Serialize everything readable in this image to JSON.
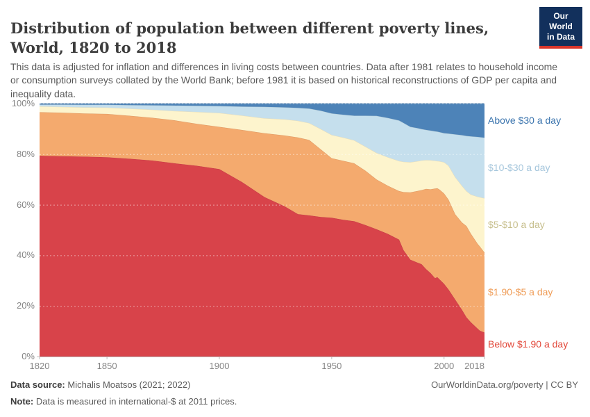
{
  "header": {
    "title": "Distribution of population between different poverty lines, World, 1820 to 2018",
    "logo": {
      "line1": "Our World",
      "line2": "in Data"
    }
  },
  "subtitle": "This data is adjusted for inflation and differences in living costs between countries. Data after 1981 relates to household income or consumption surveys collated by the World Bank; before 1981 it is based on historical reconstructions of GDP per capita and inequality data.",
  "chart_data": {
    "type": "area",
    "stacked": true,
    "unit": "%",
    "title": "Distribution of population between different poverty lines, World, 1820 to 2018",
    "xlim": [
      1820,
      2018
    ],
    "ylim": [
      0,
      100
    ],
    "grid": "dashed",
    "legend_position": "right",
    "x_ticks": [
      1820,
      1850,
      1900,
      1950,
      2000,
      2018
    ],
    "y_ticks": [
      "0%",
      "20%",
      "40%",
      "60%",
      "80%",
      "100%"
    ],
    "x": [
      1820,
      1830,
      1840,
      1850,
      1860,
      1870,
      1880,
      1890,
      1900,
      1910,
      1920,
      1929,
      1935,
      1940,
      1945,
      1950,
      1955,
      1960,
      1965,
      1970,
      1975,
      1980,
      1982,
      1985,
      1988,
      1990,
      1992,
      1994,
      1996,
      1997,
      1998,
      2000,
      2002,
      2005,
      2008,
      2010,
      2012,
      2015,
      2016,
      2018
    ],
    "series": [
      {
        "name": "Below $1.90 a day",
        "color": "#D8434A",
        "label_color": "#E2483A",
        "values": [
          79.4,
          79.2,
          79.0,
          78.8,
          78.2,
          77.5,
          76.4,
          75.4,
          74.1,
          69.0,
          63.1,
          59.4,
          56.3,
          55.8,
          55.2,
          54.9,
          54.1,
          53.5,
          52.0,
          50.3,
          48.5,
          46.2,
          42.0,
          38.3,
          37.2,
          36.5,
          34.6,
          33.0,
          31.0,
          31.4,
          30.5,
          28.8,
          26.5,
          22.5,
          18.5,
          15.5,
          13.5,
          11.0,
          10.2,
          9.5
        ]
      },
      {
        "name": "$1.90-$5 a day",
        "color": "#F4AA6E",
        "label_color": "#EF9D58",
        "values": [
          17.2,
          17.2,
          17.1,
          17.1,
          17.0,
          16.9,
          17.0,
          16.6,
          16.7,
          20.6,
          25.2,
          28.0,
          30.3,
          29.8,
          26.8,
          23.5,
          23.3,
          22.9,
          21.5,
          19.7,
          19.0,
          19.2,
          23.0,
          26.6,
          28.2,
          29.3,
          31.7,
          33.1,
          35.4,
          35.1,
          35.5,
          35.7,
          35.5,
          33.7,
          34.5,
          36.1,
          35.0,
          33.5,
          33.3,
          31.6
        ]
      },
      {
        "name": "$5-$10 a day",
        "color": "#FDF4CD",
        "label_color": "#C6BE8B",
        "values": [
          2.3,
          2.3,
          2.4,
          2.5,
          2.8,
          3.2,
          3.7,
          4.7,
          5.5,
          5.7,
          5.9,
          6.4,
          6.6,
          6.7,
          8.0,
          9.2,
          9.2,
          9.1,
          9.5,
          10.5,
          11.3,
          11.9,
          12.0,
          11.9,
          11.8,
          11.7,
          11.4,
          11.5,
          11.0,
          10.8,
          11.2,
          12.3,
          13.5,
          14.7,
          14.5,
          13.8,
          15.5,
          18.7,
          19.5,
          21.5
        ]
      },
      {
        "name": "$10-$30 a day",
        "color": "#C5DFED",
        "label_color": "#A5C6DC",
        "values": [
          0.7,
          0.9,
          1.0,
          1.1,
          1.4,
          1.7,
          2.1,
          2.4,
          2.7,
          3.5,
          4.5,
          4.7,
          5.1,
          5.7,
          7.2,
          8.5,
          9.0,
          9.7,
          12.2,
          14.6,
          15.5,
          16.0,
          15.3,
          14.0,
          13.1,
          12.4,
          11.9,
          11.7,
          11.6,
          11.6,
          11.5,
          11.5,
          12.6,
          16.9,
          20.0,
          21.8,
          23.0,
          23.6,
          23.7,
          23.9
        ]
      },
      {
        "name": "Above $30 a day",
        "color": "#4D83B8",
        "label_color": "#3973AD",
        "values": [
          0.4,
          0.4,
          0.5,
          0.5,
          0.6,
          0.7,
          0.8,
          0.9,
          1.0,
          1.2,
          1.3,
          1.5,
          1.7,
          2.0,
          2.8,
          3.9,
          4.4,
          4.8,
          4.8,
          4.9,
          5.7,
          6.7,
          7.7,
          9.2,
          9.7,
          10.1,
          10.4,
          10.7,
          11.0,
          11.1,
          11.3,
          11.7,
          11.9,
          12.2,
          12.5,
          12.8,
          13.0,
          13.2,
          13.3,
          13.5
        ]
      }
    ]
  },
  "footer": {
    "data_source_label": "Data source:",
    "data_source_value": "Michalis Moatsos (2021; 2022)",
    "note_label": "Note:",
    "note_value": "Data is measured in international-$ at 2011 prices.",
    "credit": "OurWorldinData.org/poverty | CC BY"
  }
}
